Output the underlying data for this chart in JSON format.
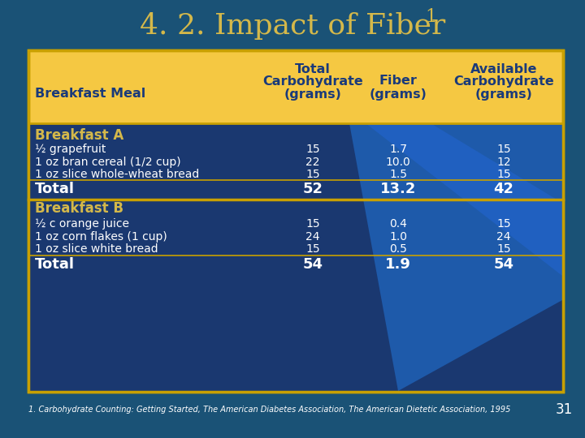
{
  "title": "4. 2. Impact of Fiber",
  "title_superscript": "1",
  "bg_color": "#1a5276",
  "table_amber": "#f5c842",
  "table_border": "#c8a000",
  "header_text": "#1a3a7a",
  "white_text": "#ffffff",
  "gold_text": "#d4b84a",
  "title_color": "#d4b84a",
  "body_blue_dark": "#1a3a7a",
  "body_blue_mid": "#1e4d8c",
  "footer_text": "1. Carbohydrate Counting: Getting Started, The American Diabetes Association, The American Dietetic Association, 1995",
  "page_number": "31",
  "rows": [
    {
      "label": "Breakfast A",
      "type": "section",
      "values": [
        null,
        null,
        null
      ]
    },
    {
      "label": "½ grapefruit",
      "type": "data",
      "values": [
        "15",
        "1.7",
        "15"
      ]
    },
    {
      "label": "1 oz bran cereal (1/2 cup)",
      "type": "data",
      "values": [
        "22",
        "10.0",
        "12"
      ]
    },
    {
      "label": "1 oz slice whole-wheat bread",
      "type": "data",
      "values": [
        "15",
        "1.5",
        "15"
      ]
    },
    {
      "label": "Total",
      "type": "total",
      "values": [
        "52",
        "13.2",
        "42"
      ]
    },
    {
      "label": "Breakfast B",
      "type": "section",
      "values": [
        null,
        null,
        null
      ]
    },
    {
      "label": "½ c orange juice",
      "type": "data",
      "values": [
        "15",
        "0.4",
        "15"
      ]
    },
    {
      "label": "1 oz corn flakes (1 cup)",
      "type": "data",
      "values": [
        "24",
        "1.0",
        "24"
      ]
    },
    {
      "label": "1 oz slice white bread",
      "type": "data",
      "values": [
        "15",
        "0.5",
        "15"
      ]
    },
    {
      "label": "Total",
      "type": "total",
      "values": [
        "54",
        "1.9",
        "54"
      ]
    }
  ]
}
